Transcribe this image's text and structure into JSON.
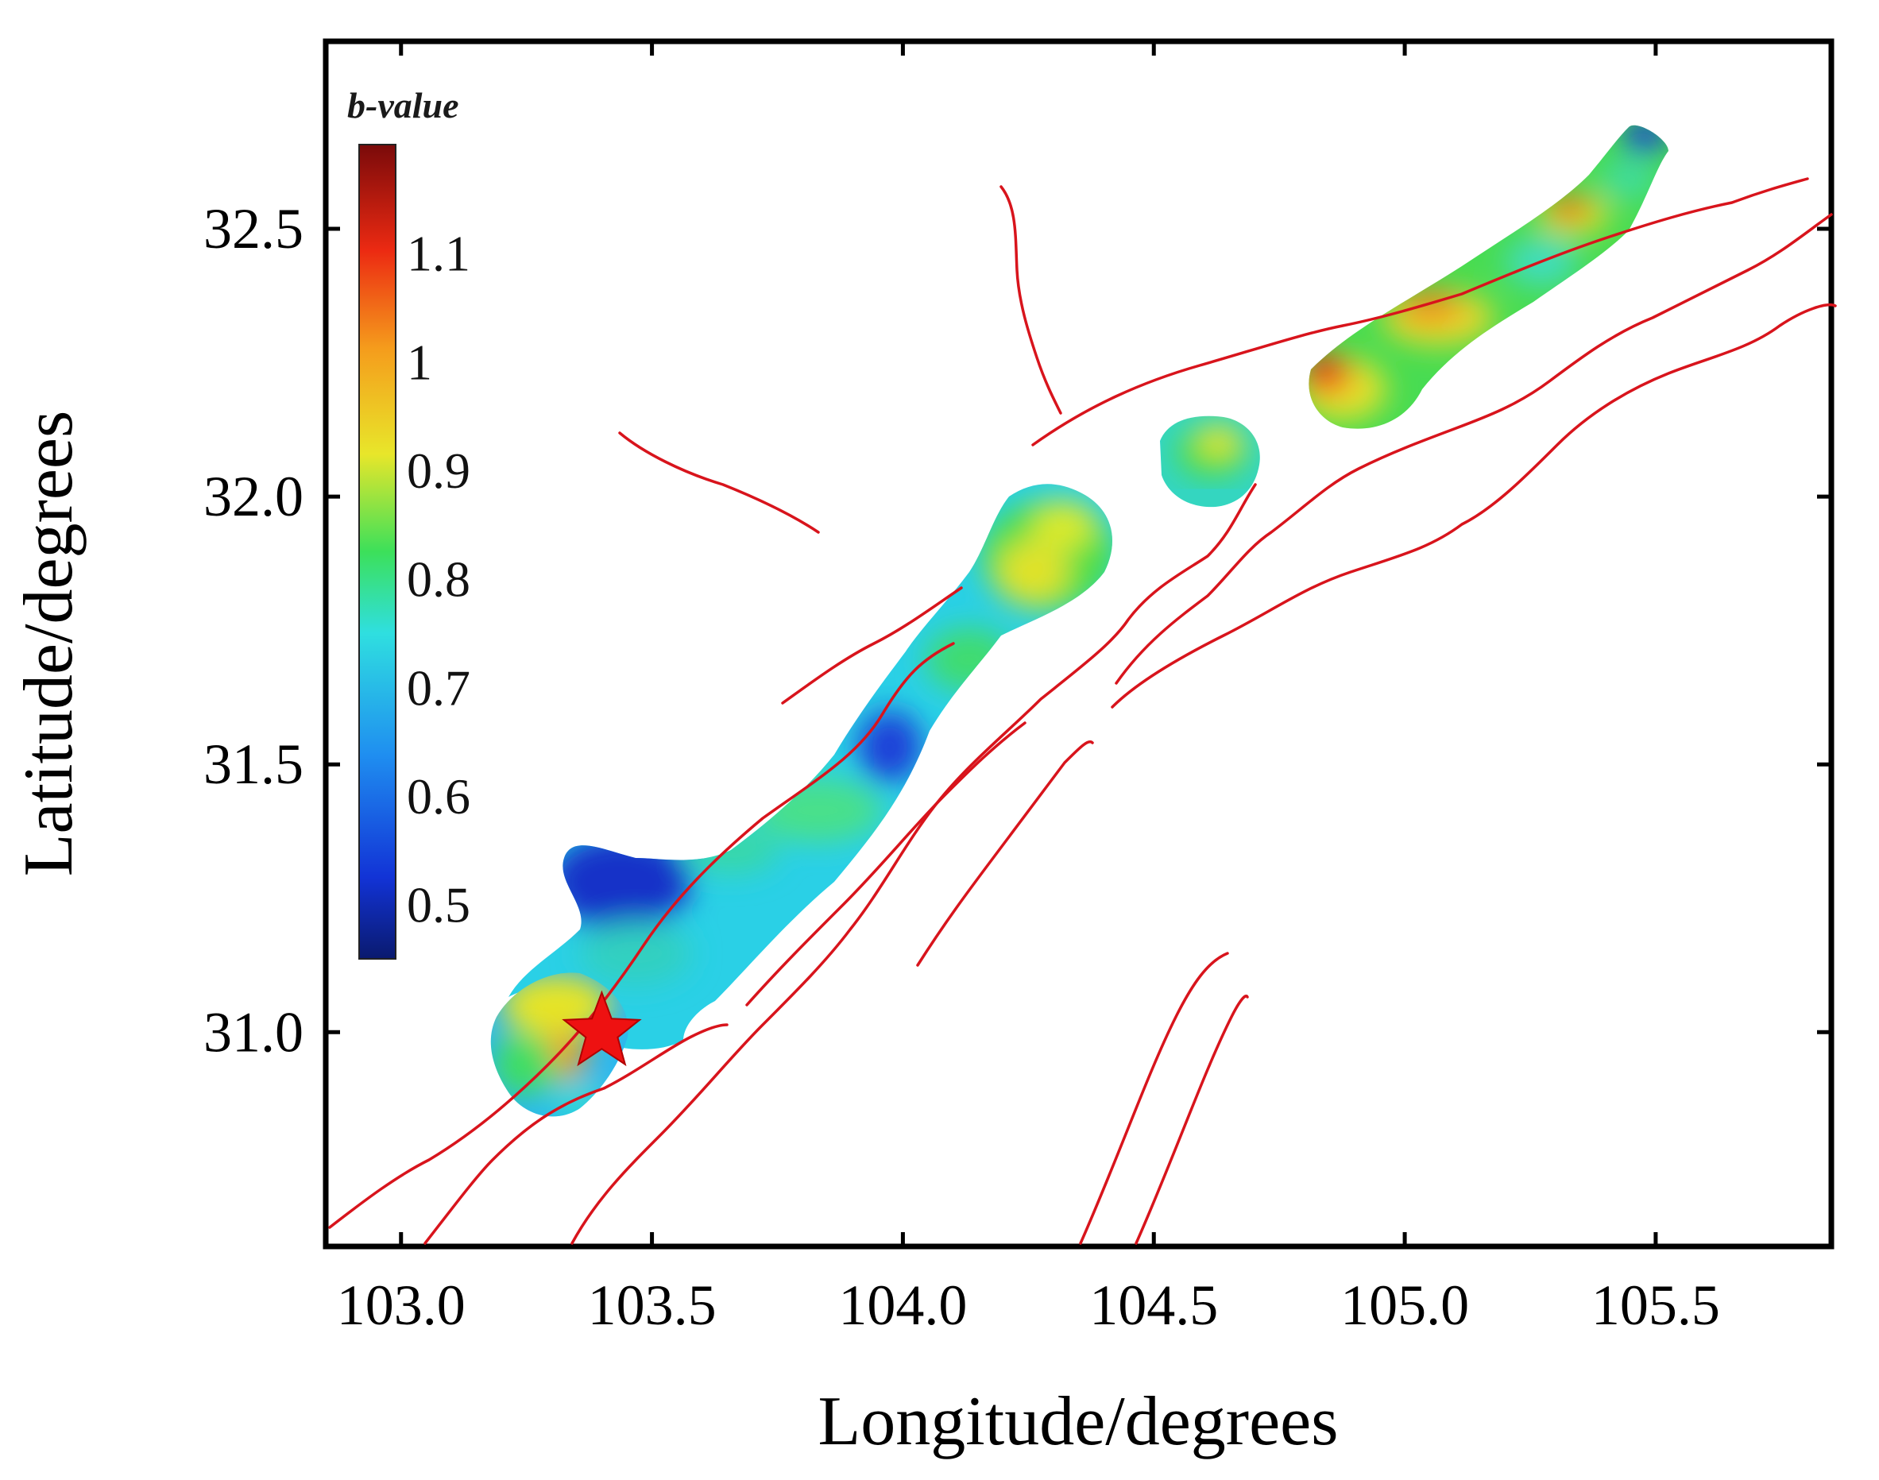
{
  "map": {
    "xlabel": "Longitude/degrees",
    "ylabel": "Latitude/degrees",
    "xlim": [
      102.85,
      105.85
    ],
    "ylim": [
      30.6,
      32.85
    ],
    "x_ticks": [
      103.0,
      103.5,
      104.0,
      104.5,
      105.0,
      105.5
    ],
    "y_ticks": [
      31.0,
      31.5,
      32.0,
      32.5
    ],
    "x_tick_labels": [
      "103.0",
      "103.5",
      "104.0",
      "104.5",
      "105.0",
      "105.5"
    ],
    "y_tick_labels": [
      "31.0",
      "31.5",
      "32.0",
      "32.5"
    ]
  },
  "colorbar": {
    "title": "b-value",
    "range": [
      0.45,
      1.2
    ],
    "ticks": [
      0.5,
      0.6,
      0.7,
      0.8,
      0.9,
      1.0,
      1.1
    ],
    "labels": [
      "0.5",
      "0.6",
      "0.7",
      "0.8",
      "0.9",
      "1",
      "1.1"
    ],
    "colormap": [
      "#0a1a6e",
      "#1233d6",
      "#1f8ef0",
      "#2fdfe0",
      "#3ce05a",
      "#e8e62a",
      "#f59c1c",
      "#ec2a12",
      "#7a0a0a"
    ]
  },
  "epicenter": {
    "lon": 103.4,
    "lat": 31.0,
    "color": "#ee1111"
  },
  "fault_color": "#d8141c"
}
